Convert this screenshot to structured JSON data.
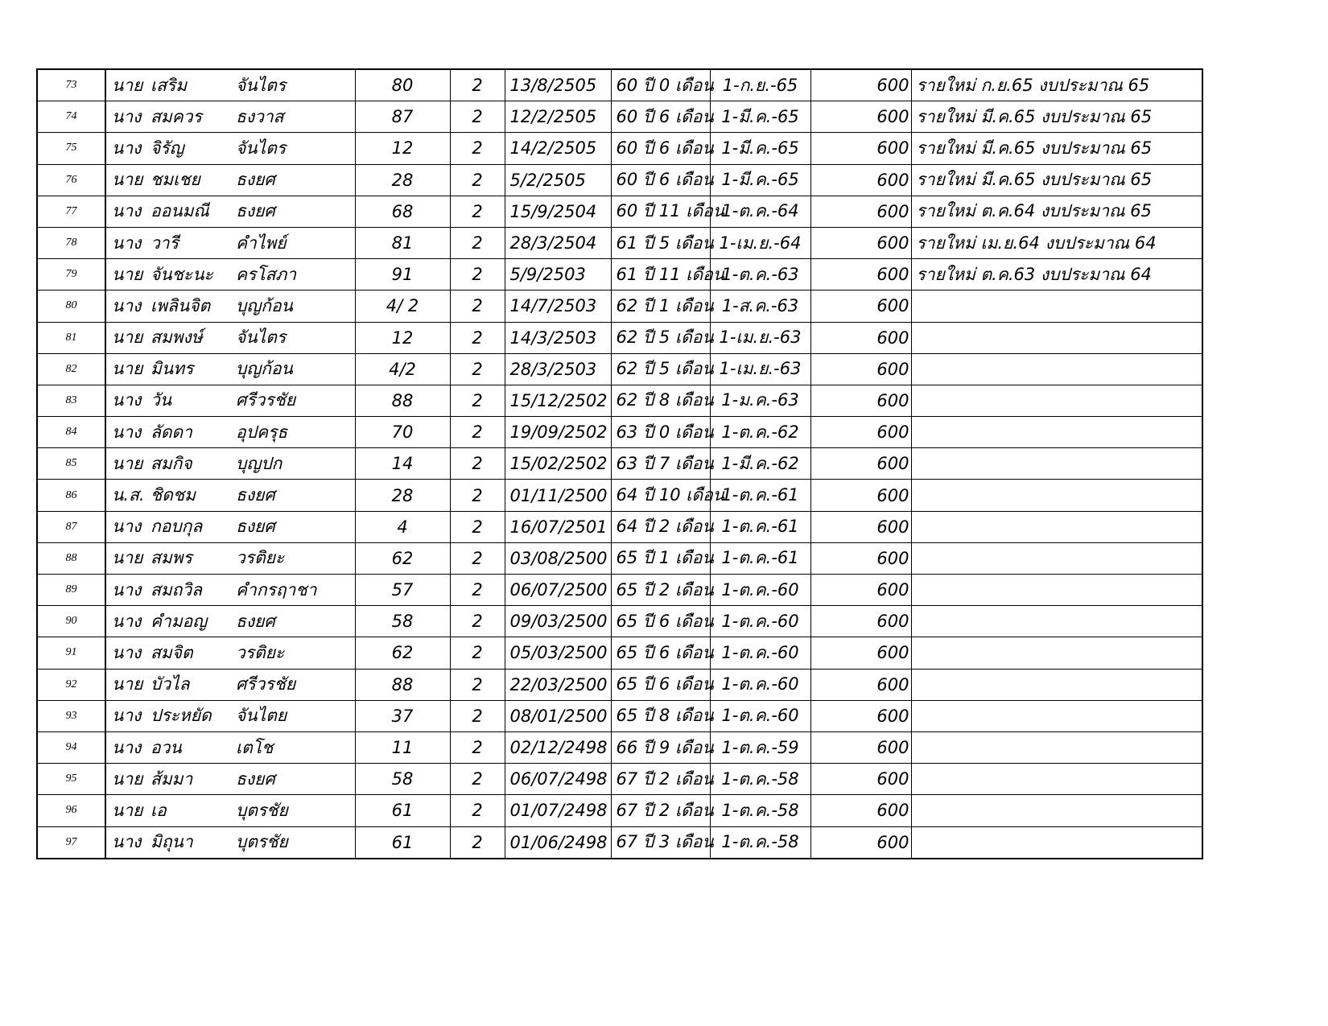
{
  "rows": [
    {
      "no": "73",
      "title": "นาย",
      "first": "เสริม",
      "last": "จันไตร",
      "house": "80",
      "moo": "2",
      "birth": "13/8/2505",
      "age": "60 ปี 0 เดือน",
      "start": "1-ก.ย.-65",
      "amount": "600",
      "note": "รายใหม่ ก.ย.65 งบประมาณ 65"
    },
    {
      "no": "74",
      "title": "นาง",
      "first": "สมควร",
      "last": "ธงวาส",
      "house": "87",
      "moo": "2",
      "birth": "12/2/2505",
      "age": "60 ปี 6 เดือน",
      "start": "1-มี.ค.-65",
      "amount": "600",
      "note": "รายใหม่ มี.ค.65 งบประมาณ 65"
    },
    {
      "no": "75",
      "title": "นาง",
      "first": "จิรัญ",
      "last": "จันไตร",
      "house": "12",
      "moo": "2",
      "birth": "14/2/2505",
      "age": "60 ปี 6 เดือน",
      "start": "1-มี.ค.-65",
      "amount": "600",
      "note": "รายใหม่ มี.ค.65 งบประมาณ 65"
    },
    {
      "no": "76",
      "title": "นาย",
      "first": "ชมเชย",
      "last": "ธงยศ",
      "house": "28",
      "moo": "2",
      "birth": "5/2/2505",
      "age": "60 ปี 6 เดือน",
      "start": "1-มี.ค.-65",
      "amount": "600",
      "note": "รายใหม่ มี.ค.65 งบประมาณ 65"
    },
    {
      "no": "77",
      "title": "นาง",
      "first": "ออนมณี",
      "last": "ธงยศ",
      "house": "68",
      "moo": "2",
      "birth": "15/9/2504",
      "age": "60 ปี 11 เดือน",
      "start": "1-ต.ค.-64",
      "amount": "600",
      "note": "รายใหม่ ต.ค.64 งบประมาณ 65"
    },
    {
      "no": "78",
      "title": "นาง",
      "first": "วารี",
      "last": "คำไพย์",
      "house": "81",
      "moo": "2",
      "birth": "28/3/2504",
      "age": "61 ปี 5 เดือน",
      "start": "1-เม.ย.-64",
      "amount": "600",
      "note": "รายใหม่ เม.ย.64 งบประมาณ 64"
    },
    {
      "no": "79",
      "title": "นาย",
      "first": "จันชะนะ",
      "last": "ครโสภา",
      "house": "91",
      "moo": "2",
      "birth": "5/9/2503",
      "age": "61 ปี 11 เดือน",
      "start": "1-ต.ค.-63",
      "amount": "600",
      "note": "รายใหม่ ต.ค.63 งบประมาณ 64"
    },
    {
      "no": "80",
      "title": "นาง",
      "first": "เพลินจิต",
      "last": "บุญก้อน",
      "house": "4/ 2",
      "moo": "2",
      "birth": "14/7/2503",
      "age": "62 ปี 1 เดือน",
      "start": "1-ส.ค.-63",
      "amount": "600",
      "note": ""
    },
    {
      "no": "81",
      "title": "นาย",
      "first": "สมพงษ์",
      "last": "จันไตร",
      "house": "12",
      "moo": "2",
      "birth": "14/3/2503",
      "age": "62 ปี 5 เดือน",
      "start": "1-เม.ย.-63",
      "amount": "600",
      "note": ""
    },
    {
      "no": "82",
      "title": "นาย",
      "first": "มินทร",
      "last": "บุญก้อน",
      "house": "4/2",
      "moo": "2",
      "birth": "28/3/2503",
      "age": "62 ปี 5 เดือน",
      "start": "1-เม.ย.-63",
      "amount": "600",
      "note": ""
    },
    {
      "no": "83",
      "title": "นาง",
      "first": "วัน",
      "last": "ศรีวรชัย",
      "house": "88",
      "moo": "2",
      "birth": "15/12/2502",
      "age": "62 ปี 8 เดือน",
      "start": "1-ม.ค.-63",
      "amount": "600",
      "note": ""
    },
    {
      "no": "84",
      "title": "นาง",
      "first": "ลัดดา",
      "last": "อุปครุธ",
      "house": "70",
      "moo": "2",
      "birth": "19/09/2502",
      "age": "63 ปี 0 เดือน",
      "start": "1-ต.ค.-62",
      "amount": "600",
      "note": ""
    },
    {
      "no": "85",
      "title": "นาย",
      "first": "สมกิจ",
      "last": "บุญปก",
      "house": "14",
      "moo": "2",
      "birth": "15/02/2502",
      "age": "63 ปี 7 เดือน",
      "start": "1-มี.ค.-62",
      "amount": "600",
      "note": ""
    },
    {
      "no": "86",
      "title": "น.ส.",
      "first": "ชิดชม",
      "last": "ธงยศ",
      "house": "28",
      "moo": "2",
      "birth": "01/11/2500",
      "age": "64 ปี 10 เดือน",
      "start": "1-ต.ค.-61",
      "amount": "600",
      "note": ""
    },
    {
      "no": "87",
      "title": "นาง",
      "first": "กอบกุล",
      "last": "ธงยศ",
      "house": "4",
      "moo": "2",
      "birth": "16/07/2501",
      "age": "64 ปี 2 เดือน",
      "start": "1-ต.ค.-61",
      "amount": "600",
      "note": ""
    },
    {
      "no": "88",
      "title": "นาย",
      "first": "สมพร",
      "last": "วรติยะ",
      "house": "62",
      "moo": "2",
      "birth": "03/08/2500",
      "age": "65 ปี 1 เดือน",
      "start": "1-ต.ค.-61",
      "amount": "600",
      "note": ""
    },
    {
      "no": "89",
      "title": "นาง",
      "first": "สมถวิล",
      "last": "คำกรฤาชา",
      "house": "57",
      "moo": "2",
      "birth": "06/07/2500",
      "age": "65 ปี 2 เดือน",
      "start": "1-ต.ค.-60",
      "amount": "600",
      "note": ""
    },
    {
      "no": "90",
      "title": "นาง",
      "first": "คำมอญ",
      "last": "ธงยศ",
      "house": "58",
      "moo": "2",
      "birth": "09/03/2500",
      "age": "65 ปี 6 เดือน",
      "start": "1-ต.ค.-60",
      "amount": "600",
      "note": ""
    },
    {
      "no": "91",
      "title": "นาง",
      "first": "สมจิต",
      "last": "วรติยะ",
      "house": "62",
      "moo": "2",
      "birth": "05/03/2500",
      "age": "65 ปี 6 เดือน",
      "start": "1-ต.ค.-60",
      "amount": "600",
      "note": ""
    },
    {
      "no": "92",
      "title": "นาย",
      "first": "บัวไล",
      "last": "ศรีวรชัย",
      "house": "88",
      "moo": "2",
      "birth": "22/03/2500",
      "age": "65 ปี 6 เดือน",
      "start": "1-ต.ค.-60",
      "amount": "600",
      "note": ""
    },
    {
      "no": "93",
      "title": "นาง",
      "first": "ประหยัด",
      "last": "จันไตย",
      "house": "37",
      "moo": "2",
      "birth": "08/01/2500",
      "age": "65 ปี 8 เดือน",
      "start": "1-ต.ค.-60",
      "amount": "600",
      "note": ""
    },
    {
      "no": "94",
      "title": "นาง",
      "first": "อวน",
      "last": "เตโช",
      "house": "11",
      "moo": "2",
      "birth": "02/12/2498",
      "age": "66 ปี 9 เดือน",
      "start": "1-ต.ค.-59",
      "amount": "600",
      "note": ""
    },
    {
      "no": "95",
      "title": "นาย",
      "first": "ส้มมา",
      "last": "ธงยศ",
      "house": "58",
      "moo": "2",
      "birth": "06/07/2498",
      "age": "67 ปี 2 เดือน",
      "start": "1-ต.ค.-58",
      "amount": "600",
      "note": ""
    },
    {
      "no": "96",
      "title": "นาย",
      "first": "เอ",
      "last": "บุตรชัย",
      "house": "61",
      "moo": "2",
      "birth": "01/07/2498",
      "age": "67 ปี 2 เดือน",
      "start": "1-ต.ค.-58",
      "amount": "600",
      "note": ""
    },
    {
      "no": "97",
      "title": "นาง",
      "first": "มิถุนา",
      "last": "บุตรชัย",
      "house": "61",
      "moo": "2",
      "birth": "01/06/2498",
      "age": "67 ปี 3 เดือน",
      "start": "1-ต.ค.-58",
      "amount": "600",
      "note": ""
    }
  ]
}
